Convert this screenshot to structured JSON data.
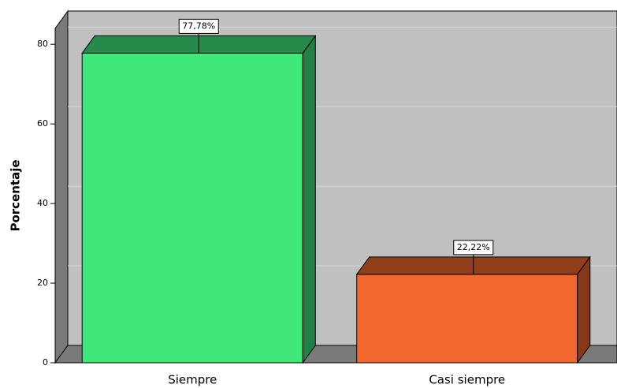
{
  "chart_data": {
    "type": "bar3d",
    "y_label": "Porcentaje",
    "categories": [
      "Siempre",
      "Casi siempre"
    ],
    "values": [
      77.78,
      22.22
    ],
    "value_labels": [
      "77,78%",
      "22,22%"
    ],
    "colors": [
      "#40e87c",
      "#f2682e"
    ],
    "ylim": [
      0,
      84
    ],
    "yticks": [
      0,
      20,
      40,
      60,
      80
    ],
    "grid": true
  }
}
